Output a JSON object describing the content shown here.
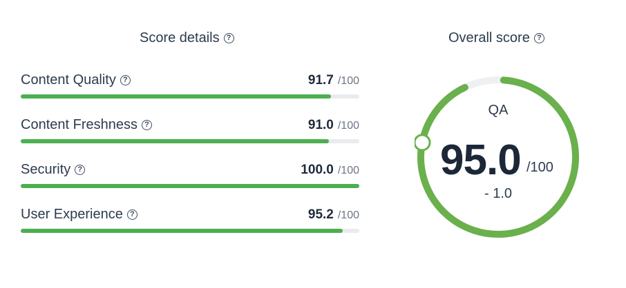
{
  "score_details": {
    "title": "Score details",
    "max_suffix": "/100",
    "metrics": [
      {
        "label": "Content Quality",
        "value": "91.7",
        "fraction": 0.917
      },
      {
        "label": "Content Freshness",
        "value": "91.0",
        "fraction": 0.91
      },
      {
        "label": "Security",
        "value": "100.0",
        "fraction": 1.0
      },
      {
        "label": "User Experience",
        "value": "95.2",
        "fraction": 0.952
      }
    ]
  },
  "overall": {
    "title": "Overall score",
    "label": "QA",
    "score": "95.0",
    "max_suffix": "/100",
    "delta": "- 1.0",
    "fraction": 0.95
  },
  "colors": {
    "bar_fill": "#4caf50",
    "bar_track": "#e9ebee",
    "gauge_fill": "#6ab04c",
    "gauge_track": "#eef0f2",
    "text": "#2d3b4d"
  },
  "icons": {
    "help": "?"
  }
}
